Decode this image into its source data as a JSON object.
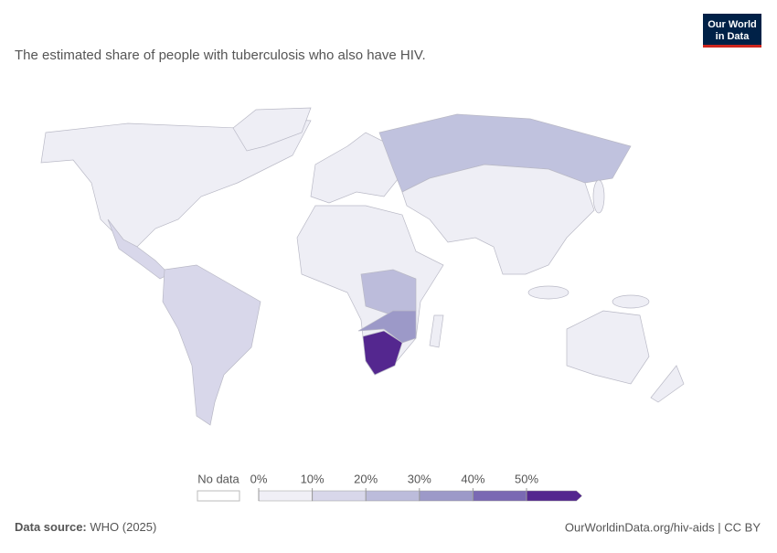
{
  "logo": [
    "Our World",
    "in Data"
  ],
  "title": "The estimated share of people with tuberculosis who also have HIV.",
  "legend": {
    "no_data": "No data",
    "ticks": [
      {
        "value": 0,
        "label": "0%"
      },
      {
        "value": 10,
        "label": "10%"
      },
      {
        "value": 20,
        "label": "20%"
      },
      {
        "value": 30,
        "label": "30%"
      },
      {
        "value": 40,
        "label": "40%"
      },
      {
        "value": 50,
        "label": "50%"
      }
    ],
    "colors": [
      "#f0eff6",
      "#d8d7ea",
      "#bcbcdb",
      "#9c99c8",
      "#7a69b3",
      "#54278f"
    ]
  },
  "footer": {
    "source_label": "Data source:",
    "source": "WHO (2025)",
    "url": "OurWorldinData.org/hiv-aids | CC BY"
  }
}
